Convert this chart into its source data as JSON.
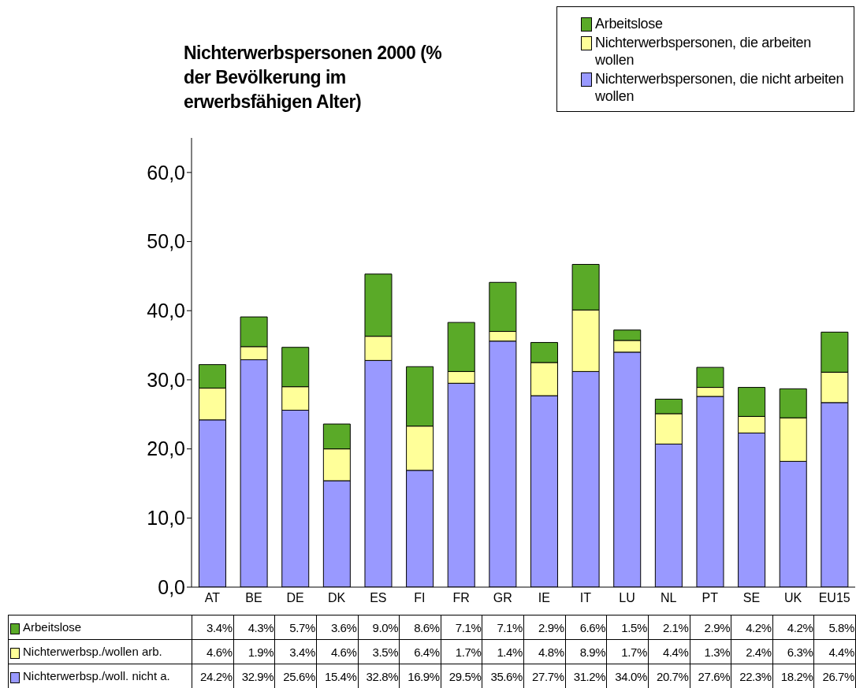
{
  "chart_data": {
    "type": "bar",
    "stacked": true,
    "title": "Nichterwerbspersonen 2000 (% der Bevölkerung im erwerbsfähigen Alter)",
    "categories": [
      "AT",
      "BE",
      "DE",
      "DK",
      "ES",
      "FI",
      "FR",
      "GR",
      "IE",
      "IT",
      "LU",
      "NL",
      "PT",
      "SE",
      "UK",
      "EU15"
    ],
    "series": [
      {
        "name": "Nichterwerbspersonen, die nicht arbeiten wollen",
        "color": "#9999ff",
        "values": [
          24.2,
          32.9,
          25.6,
          15.4,
          32.8,
          16.9,
          29.5,
          35.6,
          27.7,
          31.2,
          34.0,
          20.7,
          27.6,
          22.3,
          18.2,
          26.7
        ],
        "value_labels": [
          "24.2%",
          "32.9%",
          "25.6%",
          "15.4%",
          "32.8%",
          "16.9%",
          "29.5%",
          "35.6%",
          "27.7%",
          "31.2%",
          "34.0%",
          "20.7%",
          "27.6%",
          "22.3%",
          "18.2%",
          "26.7%"
        ]
      },
      {
        "name": "Nichterwerbspersonen, die arbeiten wollen",
        "color": "#ffff99",
        "values": [
          4.6,
          1.9,
          3.4,
          4.6,
          3.5,
          6.4,
          1.7,
          1.4,
          4.8,
          8.9,
          1.7,
          4.4,
          1.3,
          2.4,
          6.3,
          4.4
        ],
        "value_labels": [
          "4.6%",
          "1.9%",
          "3.4%",
          "4.6%",
          "3.5%",
          "6.4%",
          "1.7%",
          "1.4%",
          "4.8%",
          "8.9%",
          "1.7%",
          "4.4%",
          "1.3%",
          "2.4%",
          "6.3%",
          "4.4%"
        ]
      },
      {
        "name": "Arbeitslose",
        "color": "#5aaa28",
        "values": [
          3.4,
          4.3,
          5.7,
          3.6,
          9.0,
          8.6,
          7.1,
          7.1,
          2.9,
          6.6,
          1.5,
          2.1,
          2.9,
          4.2,
          4.2,
          5.8
        ],
        "value_labels": [
          "3.4%",
          "4.3%",
          "5.7%",
          "3.6%",
          "9.0%",
          "8.6%",
          "7.1%",
          "7.1%",
          "2.9%",
          "6.6%",
          "1.5%",
          "2.1%",
          "2.9%",
          "4.2%",
          "4.2%",
          "5.8%"
        ]
      }
    ],
    "annotations": [
      "Nichterwerbsp./woll. nicht a.",
      "Nichterwerbsp./wollen arb.",
      "Arbeitslose"
    ],
    "ylim": [
      0,
      65
    ],
    "yticks": [
      {
        "value": 0,
        "label": "0,0"
      },
      {
        "value": 10,
        "label": "10,0"
      },
      {
        "value": 20,
        "label": "20,0"
      },
      {
        "value": 30,
        "label": "30,0"
      },
      {
        "value": 40,
        "label": "40,0"
      },
      {
        "value": 50,
        "label": "50,0"
      },
      {
        "value": 60,
        "label": "60,0"
      }
    ],
    "grid": false,
    "legend": "top right"
  }
}
